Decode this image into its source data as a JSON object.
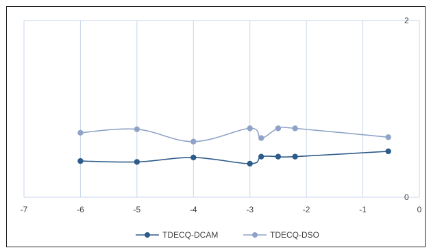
{
  "chart_data": {
    "type": "line",
    "title": "",
    "xlabel": "",
    "ylabel": "",
    "xlim": [
      -7,
      0
    ],
    "ylim": [
      0,
      2
    ],
    "x_ticks": [
      "-7",
      "-6",
      "-5",
      "-4",
      "-3",
      "-2",
      "-1",
      "0"
    ],
    "y_ticks_right": [
      "0",
      "2"
    ],
    "grid": "vertical",
    "legend_position": "bottom",
    "series": [
      {
        "name": "TDECQ-DCAM",
        "color": "#2e5c8a",
        "x": [
          -6,
          -5,
          -4,
          -3,
          -2.8,
          -2.5,
          -2.2,
          -0.55
        ],
        "y": [
          0.41,
          0.4,
          0.45,
          0.38,
          0.46,
          0.46,
          0.46,
          0.52
        ]
      },
      {
        "name": "TDECQ-DSO",
        "color": "#8ea3c7",
        "x": [
          -6,
          -5,
          -4,
          -3,
          -2.8,
          -2.5,
          -2.2,
          -0.55
        ],
        "y": [
          0.73,
          0.77,
          0.63,
          0.78,
          0.67,
          0.78,
          0.78,
          0.68
        ]
      }
    ]
  }
}
